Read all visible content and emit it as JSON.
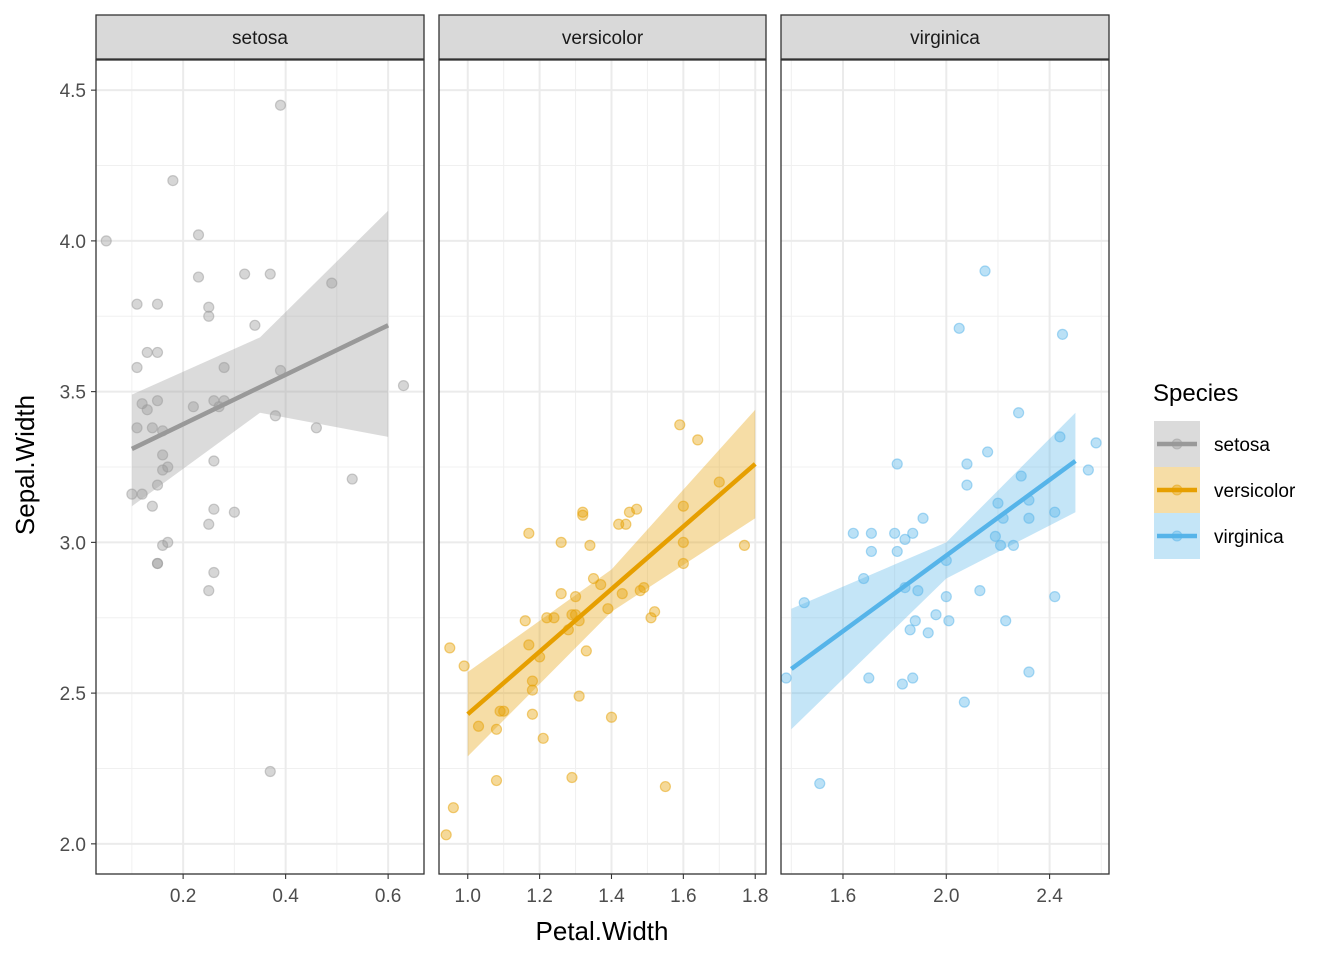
{
  "chart_data": {
    "type": "scatter",
    "facet_by": "Species",
    "xlabel": "Petal.Width",
    "ylabel": "Sepal.Width",
    "ylim": [
      1.9,
      4.6
    ],
    "y_ticks": [
      2.0,
      2.5,
      3.0,
      3.5,
      4.0,
      4.5
    ],
    "y_tick_labels": [
      "2.0",
      "2.5",
      "3.0",
      "3.5",
      "4.0",
      "4.5"
    ],
    "grid": true,
    "legend": {
      "title": "Species",
      "position": "right",
      "entries": [
        "setosa",
        "versicolor",
        "virginica"
      ]
    },
    "colors": {
      "setosa": "#999999",
      "versicolor": "#E69F00",
      "virginica": "#56B4E9"
    },
    "panels": [
      {
        "name": "setosa",
        "xlim": [
          0.03,
          0.67
        ],
        "x_ticks": [
          0.2,
          0.4,
          0.6
        ],
        "x_tick_labels": [
          "0.2",
          "0.4",
          "0.6"
        ],
        "fit": {
          "x": [
            0.1,
            0.6
          ],
          "y": [
            3.31,
            3.72
          ]
        },
        "band": {
          "x": [
            0.1,
            0.35,
            0.6
          ],
          "lower": [
            3.12,
            3.43,
            3.35
          ],
          "upper": [
            3.49,
            3.68,
            4.1
          ]
        },
        "points": [
          [
            0.05,
            4.0
          ],
          [
            0.1,
            3.16
          ],
          [
            0.11,
            3.38
          ],
          [
            0.11,
            3.58
          ],
          [
            0.11,
            3.79
          ],
          [
            0.12,
            3.46
          ],
          [
            0.12,
            3.16
          ],
          [
            0.13,
            3.63
          ],
          [
            0.13,
            3.44
          ],
          [
            0.14,
            3.38
          ],
          [
            0.14,
            3.12
          ],
          [
            0.15,
            3.79
          ],
          [
            0.15,
            3.47
          ],
          [
            0.15,
            3.19
          ],
          [
            0.15,
            2.93
          ],
          [
            0.15,
            2.93
          ],
          [
            0.15,
            3.63
          ],
          [
            0.16,
            3.37
          ],
          [
            0.16,
            3.29
          ],
          [
            0.16,
            3.24
          ],
          [
            0.16,
            2.99
          ],
          [
            0.17,
            3.25
          ],
          [
            0.17,
            3.0
          ],
          [
            0.18,
            4.2
          ],
          [
            0.22,
            3.45
          ],
          [
            0.23,
            3.88
          ],
          [
            0.23,
            4.02
          ],
          [
            0.25,
            3.75
          ],
          [
            0.25,
            3.78
          ],
          [
            0.25,
            3.06
          ],
          [
            0.25,
            2.84
          ],
          [
            0.26,
            3.11
          ],
          [
            0.26,
            3.27
          ],
          [
            0.26,
            2.9
          ],
          [
            0.26,
            3.47
          ],
          [
            0.27,
            3.45
          ],
          [
            0.28,
            3.47
          ],
          [
            0.28,
            3.58
          ],
          [
            0.3,
            3.1
          ],
          [
            0.32,
            3.89
          ],
          [
            0.34,
            3.72
          ],
          [
            0.37,
            3.89
          ],
          [
            0.37,
            2.24
          ],
          [
            0.38,
            3.42
          ],
          [
            0.39,
            4.45
          ],
          [
            0.39,
            3.57
          ],
          [
            0.46,
            3.38
          ],
          [
            0.49,
            3.86
          ],
          [
            0.53,
            3.21
          ],
          [
            0.63,
            3.52
          ]
        ]
      },
      {
        "name": "versicolor",
        "xlim": [
          0.92,
          1.83
        ],
        "x_ticks": [
          1.0,
          1.2,
          1.4,
          1.6,
          1.8
        ],
        "x_tick_labels": [
          "1.0",
          "1.2",
          "1.4",
          "1.6",
          "1.8"
        ],
        "fit": {
          "x": [
            1.0,
            1.8
          ],
          "y": [
            2.43,
            3.26
          ]
        },
        "band": {
          "x": [
            1.0,
            1.4,
            1.8
          ],
          "lower": [
            2.29,
            2.77,
            3.08
          ],
          "upper": [
            2.57,
            2.91,
            3.44
          ]
        },
        "points": [
          [
            0.94,
            2.03
          ],
          [
            0.95,
            2.65
          ],
          [
            0.96,
            2.12
          ],
          [
            0.99,
            2.59
          ],
          [
            1.03,
            2.39
          ],
          [
            1.08,
            2.21
          ],
          [
            1.08,
            2.38
          ],
          [
            1.09,
            2.44
          ],
          [
            1.1,
            2.44
          ],
          [
            1.16,
            2.74
          ],
          [
            1.17,
            3.03
          ],
          [
            1.17,
            2.66
          ],
          [
            1.18,
            2.51
          ],
          [
            1.18,
            2.54
          ],
          [
            1.18,
            2.43
          ],
          [
            1.2,
            2.62
          ],
          [
            1.21,
            2.35
          ],
          [
            1.22,
            2.75
          ],
          [
            1.24,
            2.75
          ],
          [
            1.26,
            3.0
          ],
          [
            1.26,
            2.83
          ],
          [
            1.28,
            2.71
          ],
          [
            1.29,
            2.76
          ],
          [
            1.29,
            2.22
          ],
          [
            1.3,
            2.82
          ],
          [
            1.3,
            2.76
          ],
          [
            1.31,
            2.49
          ],
          [
            1.31,
            2.74
          ],
          [
            1.32,
            3.09
          ],
          [
            1.32,
            3.1
          ],
          [
            1.33,
            2.64
          ],
          [
            1.34,
            2.99
          ],
          [
            1.35,
            2.88
          ],
          [
            1.37,
            2.86
          ],
          [
            1.39,
            2.78
          ],
          [
            1.4,
            2.42
          ],
          [
            1.42,
            3.06
          ],
          [
            1.43,
            2.83
          ],
          [
            1.44,
            3.06
          ],
          [
            1.45,
            3.1
          ],
          [
            1.47,
            3.11
          ],
          [
            1.48,
            2.84
          ],
          [
            1.49,
            2.85
          ],
          [
            1.51,
            2.75
          ],
          [
            1.52,
            2.77
          ],
          [
            1.55,
            2.19
          ],
          [
            1.59,
            3.39
          ],
          [
            1.6,
            3.12
          ],
          [
            1.6,
            3.0
          ],
          [
            1.6,
            2.93
          ],
          [
            1.64,
            3.34
          ],
          [
            1.7,
            3.2
          ],
          [
            1.77,
            2.99
          ]
        ]
      },
      {
        "name": "virginica",
        "xlim": [
          1.36,
          2.63
        ],
        "x_ticks": [
          1.6,
          2.0,
          2.4
        ],
        "x_tick_labels": [
          "1.6",
          "2.0",
          "2.4"
        ],
        "fit": {
          "x": [
            1.4,
            2.5
          ],
          "y": [
            2.58,
            3.27
          ]
        },
        "band": {
          "x": [
            1.4,
            2.0,
            2.5
          ],
          "lower": [
            2.38,
            2.88,
            3.1
          ],
          "upper": [
            2.78,
            3.0,
            3.43
          ]
        },
        "points": [
          [
            1.38,
            2.55
          ],
          [
            1.45,
            2.8
          ],
          [
            1.51,
            2.2
          ],
          [
            1.64,
            3.03
          ],
          [
            1.68,
            2.88
          ],
          [
            1.7,
            2.55
          ],
          [
            1.71,
            2.97
          ],
          [
            1.71,
            3.03
          ],
          [
            1.8,
            3.03
          ],
          [
            1.81,
            3.26
          ],
          [
            1.81,
            2.97
          ],
          [
            1.83,
            2.53
          ],
          [
            1.84,
            3.01
          ],
          [
            1.84,
            2.85
          ],
          [
            1.86,
            2.71
          ],
          [
            1.87,
            3.03
          ],
          [
            1.87,
            2.55
          ],
          [
            1.88,
            2.74
          ],
          [
            1.89,
            2.84
          ],
          [
            1.91,
            3.08
          ],
          [
            1.93,
            2.7
          ],
          [
            1.96,
            2.76
          ],
          [
            2.0,
            2.82
          ],
          [
            2.0,
            2.94
          ],
          [
            2.01,
            2.74
          ],
          [
            2.05,
            3.71
          ],
          [
            2.07,
            2.47
          ],
          [
            2.08,
            3.19
          ],
          [
            2.08,
            3.26
          ],
          [
            2.13,
            2.84
          ],
          [
            2.15,
            3.9
          ],
          [
            2.16,
            3.3
          ],
          [
            2.19,
            3.02
          ],
          [
            2.2,
            3.13
          ],
          [
            2.21,
            2.99
          ],
          [
            2.22,
            3.08
          ],
          [
            2.23,
            2.74
          ],
          [
            2.26,
            2.99
          ],
          [
            2.28,
            3.43
          ],
          [
            2.29,
            3.22
          ],
          [
            2.32,
            3.14
          ],
          [
            2.32,
            3.08
          ],
          [
            2.32,
            2.57
          ],
          [
            2.42,
            2.82
          ],
          [
            2.42,
            3.1
          ],
          [
            2.44,
            3.35
          ],
          [
            2.45,
            3.69
          ],
          [
            2.55,
            3.24
          ],
          [
            2.58,
            3.33
          ]
        ]
      }
    ]
  }
}
